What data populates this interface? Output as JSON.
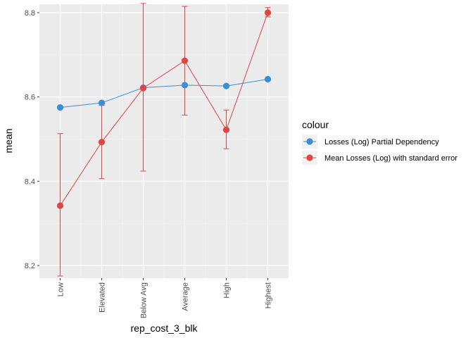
{
  "chart_data": {
    "type": "line",
    "xlabel": "rep_cost_3_blk",
    "ylabel": "mean",
    "categories": [
      "Low",
      "Elevated",
      "Below Avg",
      "Average",
      "High",
      "Highest"
    ],
    "ylim": [
      8.17,
      8.82
    ],
    "yticks": [
      8.2,
      8.4,
      8.6,
      8.8
    ],
    "ytick_labels": [
      "8.2",
      "8.4",
      "8.6",
      "8.8"
    ],
    "grid": true,
    "legend_position": "right",
    "legend_title": "colour",
    "series": [
      {
        "name": "Losses (Log) Partial Dependency",
        "color": "#3b8fd0",
        "values": [
          8.575,
          8.586,
          8.622,
          8.628,
          8.626,
          8.642
        ]
      },
      {
        "name": "Mean Losses (Log) with standard error",
        "color": "#e04545",
        "values": [
          8.342,
          8.493,
          8.621,
          8.686,
          8.522,
          8.8
        ],
        "error_low": [
          8.175,
          8.406,
          8.424,
          8.557,
          8.477,
          8.79
        ],
        "error_high": [
          8.513,
          8.58,
          8.822,
          8.815,
          8.569,
          8.812
        ]
      }
    ]
  }
}
